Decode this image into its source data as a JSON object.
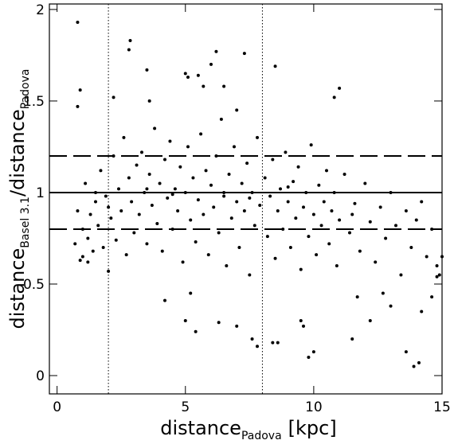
{
  "chart_data": {
    "type": "scatter",
    "x_label": {
      "text": "distance",
      "sub": "Padova",
      "unit": "[kpc]"
    },
    "y_label": {
      "text": "distance",
      "sub": "Basel 3.1",
      "text2": "/distance",
      "sub2": "Padova"
    },
    "xlim": [
      -0.3,
      15
    ],
    "ylim": [
      -0.1,
      2.03
    ],
    "xticks": [
      0,
      5,
      10,
      15
    ],
    "yticks": [
      0,
      0.5,
      1,
      1.5,
      2
    ],
    "color": "#000000",
    "hlines": [
      {
        "value": 1,
        "style": "solid"
      },
      {
        "value": 1.2,
        "style": "dashed"
      },
      {
        "value": 0.8,
        "style": "dashed"
      }
    ],
    "vlines": [
      {
        "value": 2,
        "style": "dotted"
      },
      {
        "value": 8,
        "style": "dotted"
      }
    ],
    "x": [
      0.8,
      2.85,
      2.8,
      0.9,
      0.8,
      2.2,
      3.5,
      3.6,
      5,
      5.1,
      5.5,
      6.2,
      6,
      7.3,
      8.5,
      5.7,
      6.5,
      7,
      11,
      10.8,
      4.2,
      5.2,
      5,
      5.4,
      6.3,
      7,
      7.6,
      7.8,
      8.4,
      8.6,
      9.5,
      9.6,
      9.8,
      10,
      11.5,
      12.2,
      13,
      13.6,
      13.9,
      14.1,
      14.2,
      14.6,
      14.9,
      15,
      14.8,
      12.7,
      11.7,
      2,
      1.2,
      1,
      0.7,
      0.8,
      0.9,
      1.0,
      1.1,
      1.2,
      1.3,
      1.4,
      1.5,
      1.6,
      1.7,
      1.8,
      1.9,
      2.1,
      2.2,
      2.3,
      2.4,
      2.5,
      2.6,
      2.7,
      2.8,
      2.9,
      3.0,
      3.1,
      3.2,
      3.3,
      3.4,
      3.5,
      3.6,
      3.7,
      3.8,
      3.9,
      4.0,
      4.1,
      4.2,
      4.3,
      4.4,
      4.5,
      4.6,
      4.7,
      4.8,
      4.9,
      5.0,
      5.1,
      5.2,
      5.3,
      5.4,
      5.5,
      5.6,
      5.7,
      5.8,
      5.9,
      6.0,
      6.1,
      6.2,
      6.3,
      6.4,
      6.5,
      6.6,
      6.7,
      6.8,
      6.9,
      7.0,
      7.1,
      7.2,
      7.3,
      7.4,
      7.5,
      7.6,
      7.7,
      7.8,
      7.9,
      8.1,
      8.2,
      8.3,
      8.4,
      8.5,
      8.6,
      8.7,
      8.8,
      8.9,
      9.0,
      9.1,
      9.2,
      9.3,
      9.4,
      9.5,
      9.6,
      9.7,
      9.8,
      9.9,
      10.0,
      10.1,
      10.2,
      10.3,
      10.4,
      10.5,
      10.6,
      10.7,
      10.8,
      10.9,
      11.0,
      11.2,
      11.4,
      11.6,
      11.8,
      12.0,
      12.2,
      12.4,
      12.6,
      12.8,
      13.0,
      13.2,
      13.4,
      13.6,
      13.8,
      14.0,
      14.2,
      14.4,
      14.6,
      14.8,
      1.5,
      3.5,
      6.5,
      7.5,
      9.0,
      2.0,
      4.5,
      11.5
    ],
    "values": [
      1.93,
      1.83,
      1.78,
      1.56,
      1.47,
      1.52,
      1.67,
      1.5,
      1.65,
      1.63,
      1.64,
      1.77,
      1.7,
      1.76,
      1.69,
      1.58,
      1.58,
      1.45,
      1.57,
      1.52,
      0.41,
      0.45,
      0.3,
      0.24,
      0.29,
      0.27,
      0.2,
      0.16,
      0.18,
      0.18,
      0.3,
      0.27,
      0.1,
      0.13,
      0.2,
      0.3,
      0.38,
      0.13,
      0.05,
      0.07,
      0.35,
      0.43,
      0.55,
      0.65,
      0.54,
      0.45,
      0.43,
      0.57,
      0.62,
      0.65,
      0.72,
      0.9,
      0.63,
      0.8,
      1.05,
      0.75,
      0.88,
      0.68,
      0.95,
      0.82,
      1.12,
      0.7,
      0.98,
      0.86,
      1.2,
      0.74,
      1.02,
      0.9,
      1.3,
      0.66,
      1.08,
      0.95,
      0.78,
      1.15,
      0.88,
      1.22,
      1.0,
      0.72,
      1.1,
      0.93,
      1.35,
      0.83,
      1.05,
      0.68,
      1.18,
      0.97,
      1.28,
      0.8,
      1.02,
      0.9,
      1.14,
      0.62,
      1.0,
      1.25,
      0.85,
      1.08,
      0.73,
      0.96,
      1.32,
      0.88,
      1.12,
      0.66,
      1.04,
      0.92,
      1.2,
      0.78,
      1.4,
      0.98,
      0.6,
      1.1,
      0.86,
      1.25,
      0.95,
      0.7,
      1.05,
      0.9,
      1.16,
      0.55,
      1.0,
      0.82,
      1.3,
      0.93,
      1.08,
      0.76,
      0.98,
      1.18,
      0.64,
      0.9,
      1.02,
      0.8,
      1.22,
      0.95,
      0.7,
      1.06,
      0.86,
      1.14,
      0.58,
      0.92,
      1.0,
      0.76,
      1.26,
      0.88,
      0.66,
      1.04,
      0.82,
      0.95,
      1.12,
      0.72,
      0.9,
      1.0,
      0.6,
      0.85,
      1.1,
      0.78,
      0.94,
      0.68,
      1.05,
      0.84,
      0.62,
      0.92,
      0.75,
      1.0,
      0.82,
      0.55,
      0.9,
      0.7,
      0.85,
      0.95,
      0.65,
      0.8,
      0.6,
      1.0,
      1.02,
      1.0,
      0.97,
      1.03,
      0.92,
      0.99,
      0.88
    ]
  }
}
